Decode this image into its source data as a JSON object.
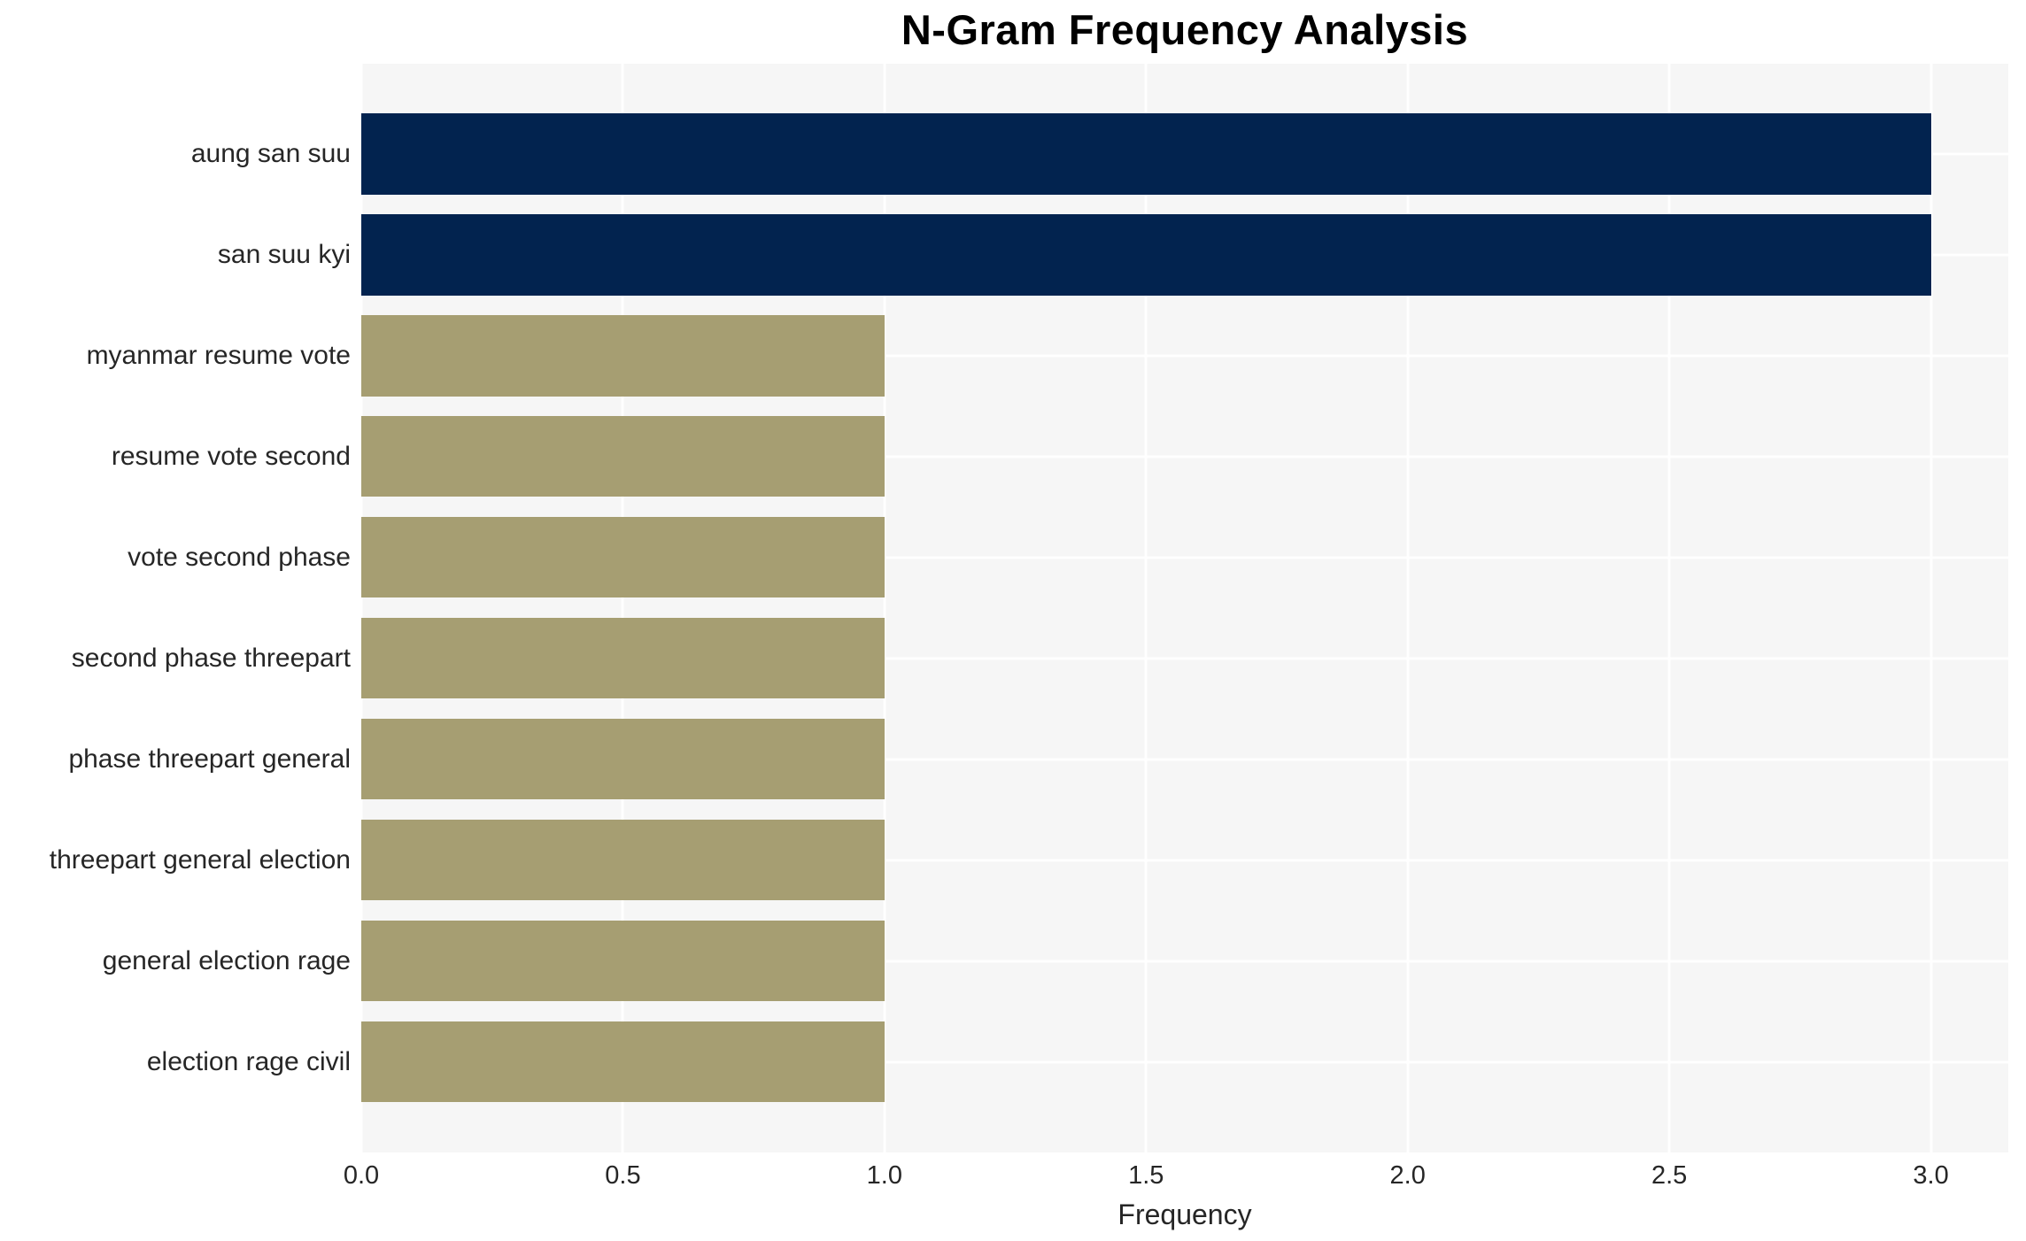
{
  "chart_data": {
    "type": "bar",
    "orientation": "horizontal",
    "title": "N-Gram Frequency Analysis",
    "xlabel": "Frequency",
    "ylabel": "",
    "categories": [
      "aung san suu",
      "san suu kyi",
      "myanmar resume vote",
      "resume vote second",
      "vote second phase",
      "second phase threepart",
      "phase threepart general",
      "threepart general election",
      "general election rage",
      "election rage civil"
    ],
    "values": [
      3,
      3,
      1,
      1,
      1,
      1,
      1,
      1,
      1,
      1
    ],
    "bar_colors": [
      "#02234F",
      "#02234F",
      "#A69E72",
      "#A69E72",
      "#A69E72",
      "#A69E72",
      "#A69E72",
      "#A69E72",
      "#A69E72",
      "#A69E72"
    ],
    "xlim": [
      0,
      3.148
    ],
    "xticks": [
      0.0,
      0.5,
      1.0,
      1.5,
      2.0,
      2.5,
      3.0
    ],
    "xtick_labels": [
      "0.0",
      "0.5",
      "1.0",
      "1.5",
      "2.0",
      "2.5",
      "3.0"
    ],
    "grid": true,
    "legend_position": "none",
    "colors": {
      "bar_high": "#02234F",
      "bar_low": "#A69E72",
      "plot_background": "#F6F6F6",
      "gridline": "#FFFFFF",
      "tick_text": "#262626",
      "title_text": "#000000",
      "figure_background": "#FFFFFF"
    }
  }
}
